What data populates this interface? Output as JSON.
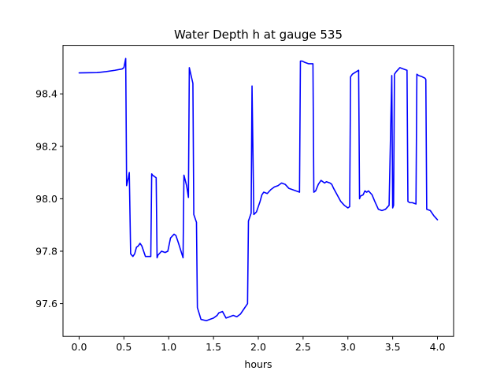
{
  "chart_data": {
    "type": "line",
    "title": "Water Depth h at gauge 535",
    "xlabel": "hours",
    "ylabel": "",
    "xlim": [
      -0.18,
      4.18
    ],
    "ylim": [
      97.475,
      98.585
    ],
    "xticks": [
      0.0,
      0.5,
      1.0,
      1.5,
      2.0,
      2.5,
      3.0,
      3.5,
      4.0
    ],
    "xtick_labels": [
      "0.0",
      "0.5",
      "1.0",
      "1.5",
      "2.0",
      "2.5",
      "3.0",
      "3.5",
      "4.0"
    ],
    "yticks": [
      97.6,
      97.8,
      98.0,
      98.2,
      98.4
    ],
    "ytick_labels": [
      "97.6",
      "97.8",
      "98.0",
      "98.2",
      "98.4"
    ],
    "grid": false,
    "series": [
      {
        "color": "#0000ff",
        "x": [
          0.0,
          0.2,
          0.3,
          0.4,
          0.48,
          0.5,
          0.52,
          0.53,
          0.55,
          0.56,
          0.575,
          0.6,
          0.62,
          0.64,
          0.66,
          0.68,
          0.7,
          0.74,
          0.8,
          0.81,
          0.82,
          0.86,
          0.87,
          0.88,
          0.92,
          0.96,
          0.99,
          1.02,
          1.06,
          1.08,
          1.11,
          1.16,
          1.17,
          1.2,
          1.22,
          1.23,
          1.27,
          1.28,
          1.31,
          1.32,
          1.36,
          1.42,
          1.46,
          1.5,
          1.54,
          1.56,
          1.6,
          1.64,
          1.68,
          1.72,
          1.76,
          1.8,
          1.84,
          1.88,
          1.89,
          1.91,
          1.92,
          1.93,
          1.95,
          1.98,
          2.02,
          2.04,
          2.06,
          2.1,
          2.14,
          2.18,
          2.22,
          2.26,
          2.3,
          2.34,
          2.38,
          2.42,
          2.46,
          2.47,
          2.49,
          2.52,
          2.56,
          2.6,
          2.61,
          2.62,
          2.64,
          2.67,
          2.7,
          2.72,
          2.74,
          2.76,
          2.8,
          2.82,
          2.84,
          2.88,
          2.92,
          2.96,
          3.0,
          3.02,
          3.03,
          3.05,
          3.12,
          3.13,
          3.14,
          3.17,
          3.19,
          3.21,
          3.23,
          3.27,
          3.3,
          3.34,
          3.38,
          3.42,
          3.46,
          3.49,
          3.5,
          3.51,
          3.52,
          3.53,
          3.54,
          3.58,
          3.62,
          3.66,
          3.67,
          3.69,
          3.72,
          3.76,
          3.77,
          3.79,
          3.83,
          3.86,
          3.87,
          3.88,
          3.92,
          3.96,
          4.0
        ],
        "y": [
          98.48,
          98.481,
          98.485,
          98.49,
          98.495,
          98.5,
          98.535,
          98.05,
          98.08,
          98.1,
          97.79,
          97.78,
          97.79,
          97.815,
          97.82,
          97.83,
          97.82,
          97.78,
          97.78,
          98.095,
          98.09,
          98.08,
          97.775,
          97.785,
          97.8,
          97.795,
          97.8,
          97.85,
          97.865,
          97.86,
          97.83,
          97.775,
          98.09,
          98.05,
          98.005,
          98.5,
          98.44,
          97.94,
          97.91,
          97.585,
          97.54,
          97.535,
          97.54,
          97.545,
          97.555,
          97.565,
          97.57,
          97.545,
          97.55,
          97.555,
          97.55,
          97.56,
          97.58,
          97.6,
          97.915,
          97.935,
          97.945,
          98.43,
          97.94,
          97.95,
          97.99,
          98.015,
          98.025,
          98.02,
          98.035,
          98.045,
          98.05,
          98.06,
          98.055,
          98.04,
          98.035,
          98.03,
          98.025,
          98.525,
          98.525,
          98.52,
          98.515,
          98.515,
          98.515,
          98.025,
          98.03,
          98.055,
          98.07,
          98.065,
          98.06,
          98.065,
          98.06,
          98.055,
          98.04,
          98.015,
          97.99,
          97.975,
          97.965,
          97.97,
          98.465,
          98.475,
          98.49,
          98.0,
          98.01,
          98.015,
          98.03,
          98.025,
          98.03,
          98.015,
          97.99,
          97.96,
          97.955,
          97.96,
          97.975,
          98.47,
          97.965,
          97.975,
          98.475,
          98.48,
          98.485,
          98.5,
          98.495,
          98.49,
          97.99,
          97.985,
          97.985,
          97.98,
          98.475,
          98.47,
          98.465,
          98.46,
          98.455,
          97.96,
          97.955,
          97.935,
          97.92
        ]
      }
    ]
  }
}
